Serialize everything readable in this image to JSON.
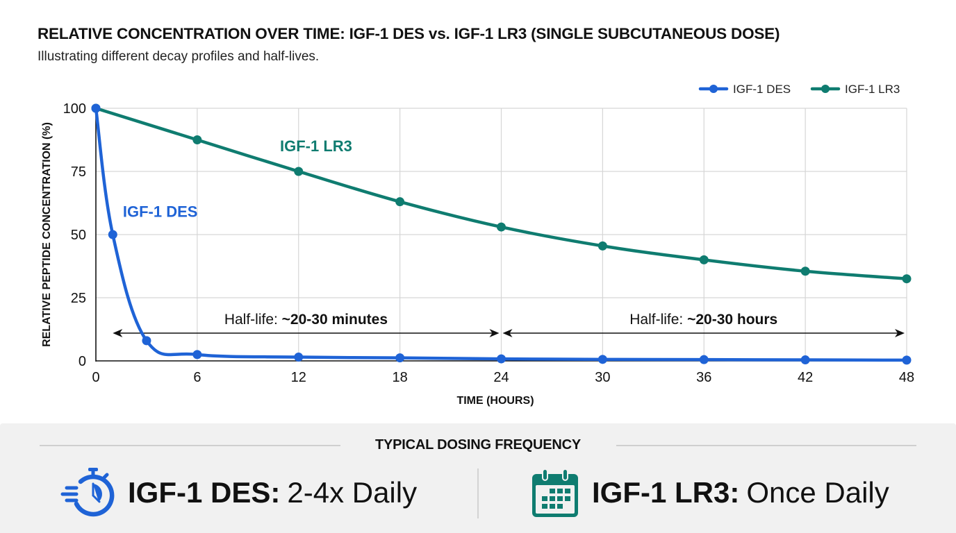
{
  "header": {
    "title": "RELATIVE CONCENTRATION OVER TIME: IGF-1 DES vs. IGF-1 LR3 (SINGLE SUBCUTANEOUS DOSE)",
    "subtitle": "Illustrating different decay profiles and half-lives."
  },
  "colors": {
    "des": "#1f63d6",
    "lr3": "#0f7c70",
    "grid": "#d6d6d6",
    "axis": "#111111",
    "footer_bg": "#f1f1f1"
  },
  "chart_data": {
    "type": "line",
    "title": "RELATIVE CONCENTRATION OVER TIME: IGF-1 DES vs. IGF-1 LR3 (SINGLE SUBCUTANEOUS DOSE)",
    "subtitle": "Illustrating different decay profiles and half-lives.",
    "xlabel": "TIME (HOURS)",
    "ylabel": "RELATIVE PEPTIDE CONCENTRATION (%)",
    "xlim": [
      0,
      48
    ],
    "ylim": [
      0,
      100
    ],
    "xticks": [
      0,
      6,
      12,
      18,
      24,
      30,
      36,
      42,
      48
    ],
    "yticks": [
      0,
      25,
      50,
      75,
      100
    ],
    "grid": true,
    "legend": {
      "placement": "top-right",
      "entries": [
        "IGF-1 DES",
        "IGF-1 LR3"
      ]
    },
    "series": [
      {
        "name": "IGF-1 DES",
        "color_key": "des",
        "label": "IGF-1 DES",
        "x": [
          0,
          1,
          3,
          6,
          12,
          18,
          24,
          30,
          36,
          42,
          48
        ],
        "y": [
          100,
          50,
          8,
          2.5,
          1.5,
          1.2,
          0.8,
          0.6,
          0.5,
          0.4,
          0.3
        ]
      },
      {
        "name": "IGF-1 LR3",
        "color_key": "lr3",
        "label": "IGF-1 LR3",
        "x": [
          0,
          6,
          12,
          18,
          24,
          30,
          36,
          42,
          48
        ],
        "y": [
          100,
          87.5,
          75,
          63,
          53,
          45.5,
          40,
          35.5,
          32.5
        ]
      }
    ],
    "annotations": [
      {
        "text_plain": "Half-life: ",
        "text_bold": "~20-30 minutes",
        "x_range": [
          1,
          24
        ],
        "y": 11
      },
      {
        "text_plain": "Half-life: ",
        "text_bold": "~20-30 hours",
        "x_range": [
          24,
          48
        ],
        "y": 11
      }
    ],
    "series_labels": [
      {
        "text": "IGF-1 DES",
        "x": 1.6,
        "y": 57
      },
      {
        "text": "IGF-1 LR3",
        "x": 10.9,
        "y": 83
      }
    ]
  },
  "footer": {
    "heading": "TYPICAL DOSING FREQUENCY",
    "items": [
      {
        "icon": "stopwatch-icon",
        "name": "IGF-1 DES:",
        "frequency": "2-4x Daily"
      },
      {
        "icon": "calendar-icon",
        "name": "IGF-1 LR3:",
        "frequency": "Once Daily"
      }
    ]
  }
}
